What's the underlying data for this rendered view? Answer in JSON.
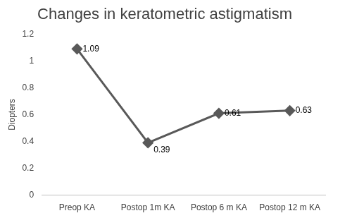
{
  "chart_data": {
    "type": "line",
    "title": "Changes in keratometric astigmatism",
    "y_label": "Diopters",
    "categories": [
      "Preop KA",
      "Postop 1m KA",
      "Postop 6 m KA",
      "Postop 12 m KA"
    ],
    "values": [
      1.09,
      0.39,
      0.61,
      0.63
    ],
    "color": "#595959",
    "marker": "diamond",
    "line_style": "solid",
    "ylim": [
      0,
      1.2
    ],
    "yticks": [
      0,
      0.2,
      0.4,
      0.6,
      0.8,
      1,
      1.2
    ],
    "grid": false,
    "data_labels": true
  }
}
